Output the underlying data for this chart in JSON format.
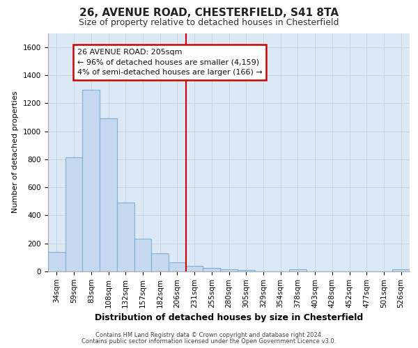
{
  "title_line1": "26, AVENUE ROAD, CHESTERFIELD, S41 8TA",
  "title_line2": "Size of property relative to detached houses in Chesterfield",
  "xlabel": "Distribution of detached houses by size in Chesterfield",
  "ylabel": "Number of detached properties",
  "footer_line1": "Contains HM Land Registry data © Crown copyright and database right 2024.",
  "footer_line2": "Contains public sector information licensed under the Open Government Licence v3.0.",
  "annotation_line1": "26 AVENUE ROAD: 205sqm",
  "annotation_line2": "← 96% of detached houses are smaller (4,159)",
  "annotation_line3": "4% of semi-detached houses are larger (166) →",
  "bar_labels": [
    "34sqm",
    "59sqm",
    "83sqm",
    "108sqm",
    "132sqm",
    "157sqm",
    "182sqm",
    "206sqm",
    "231sqm",
    "255sqm",
    "280sqm",
    "305sqm",
    "329sqm",
    "354sqm",
    "378sqm",
    "403sqm",
    "428sqm",
    "452sqm",
    "477sqm",
    "501sqm",
    "526sqm"
  ],
  "bar_values": [
    140,
    815,
    1295,
    1090,
    490,
    235,
    130,
    65,
    38,
    27,
    15,
    8,
    0,
    0,
    15,
    0,
    0,
    0,
    0,
    0,
    15
  ],
  "bar_color": "#c5d8f0",
  "bar_edge_color": "#7bafd4",
  "vline_x": 7.5,
  "vline_color": "#cc0000",
  "ylim": [
    0,
    1700
  ],
  "yticks": [
    0,
    200,
    400,
    600,
    800,
    1000,
    1200,
    1400,
    1600
  ],
  "grid_color": "#c8d4e0",
  "bg_color": "#dde8f5",
  "annotation_box_edgecolor": "#cc0000",
  "title1_fontsize": 11,
  "title2_fontsize": 9,
  "ylabel_fontsize": 8,
  "xlabel_fontsize": 9,
  "tick_fontsize": 7.5,
  "footer_fontsize": 6
}
